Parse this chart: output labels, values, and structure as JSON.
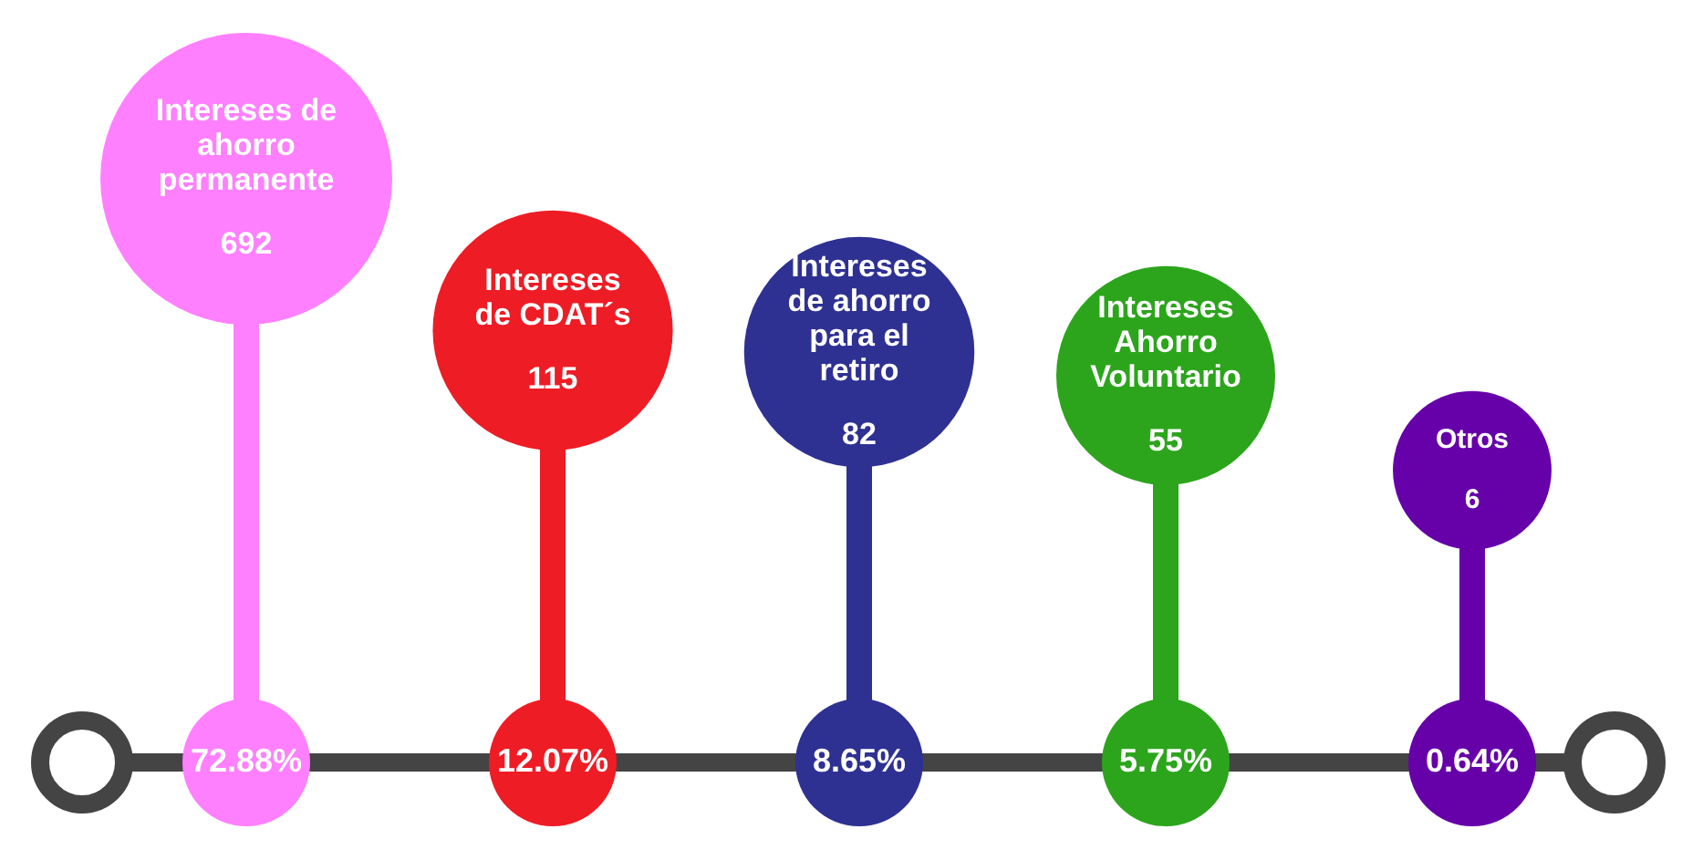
{
  "chart_data": {
    "type": "other",
    "categories": [
      "Intereses de ahorro permanente",
      "Intereses de CDAT´s",
      "Intereses de ahorro para el retiro",
      "Intereses Ahorro Voluntario",
      "Otros"
    ],
    "data_labels": true,
    "series": [
      {
        "values": [
          692,
          115,
          82,
          55,
          6
        ],
        "colors": [
          "#ff80ff",
          "#ee1c25",
          "#2e3192",
          "#2ca51c",
          "#6600a8"
        ]
      },
      {
        "values": [
          72.88,
          12.07,
          8.65,
          5.75,
          0.64
        ],
        "colors": [
          "#ff80ff",
          "#ee1c25",
          "#2e3192",
          "#2ca51c",
          "#6600a8"
        ],
        "value_labels": [
          "72.88%",
          "12.07%",
          "8.65%",
          "5.75%",
          "0.64%"
        ]
      }
    ]
  }
}
